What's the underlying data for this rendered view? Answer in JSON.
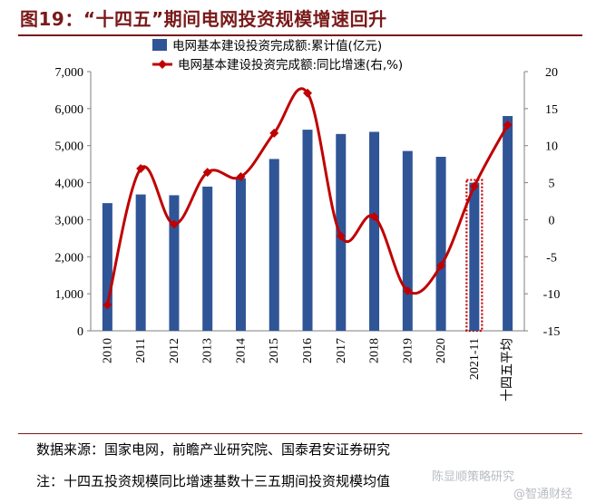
{
  "figure": {
    "title": "图19：“十四五”期间电网投资规模增速回升",
    "source": "数据来源：国家电网，前瞻产业研究院、国泰君安证券研究",
    "note": "注：十四五投资规模同比增速基数十三五期间投资规模均值",
    "watermark": "陈显顺策略研究",
    "watermark2": "@智通财经"
  },
  "chart_data": {
    "type": "bar",
    "categories": [
      "2010",
      "2011",
      "2012",
      "2013",
      "2014",
      "2015",
      "2016",
      "2017",
      "2018",
      "2019",
      "2020",
      "2021-11",
      "十四五平均"
    ],
    "series": [
      {
        "name": "电网基本建设投资完成额:累计值(亿元)",
        "type": "bar",
        "axis": "left",
        "color": "#2f5597",
        "values": [
          3448,
          3682,
          3661,
          3894,
          4119,
          4640,
          5431,
          5315,
          5373,
          4856,
          4699,
          4000,
          5800
        ]
      },
      {
        "name": "电网基本建设投资完成额:同比增速(右,%)",
        "type": "line",
        "axis": "right",
        "color": "#c00000",
        "values": [
          -11.5,
          6.9,
          -0.6,
          6.4,
          5.8,
          11.7,
          17.1,
          -2.2,
          0.4,
          -9.6,
          -6.2,
          4.5,
          12.8
        ]
      }
    ],
    "highlight": {
      "category": "2021-11",
      "style": "red dotted outline"
    },
    "y_left": {
      "min": 0,
      "max": 7000,
      "step": 1000,
      "tick_labels": [
        "0",
        "1,000",
        "2,000",
        "3,000",
        "4,000",
        "5,000",
        "6,000",
        "7,000"
      ]
    },
    "y_right": {
      "min": -15,
      "max": 20,
      "step": 5,
      "tick_labels": [
        "-15",
        "-10",
        "-5",
        "0",
        "5",
        "10",
        "15",
        "20"
      ]
    },
    "legend_position": "top",
    "grid": false
  }
}
